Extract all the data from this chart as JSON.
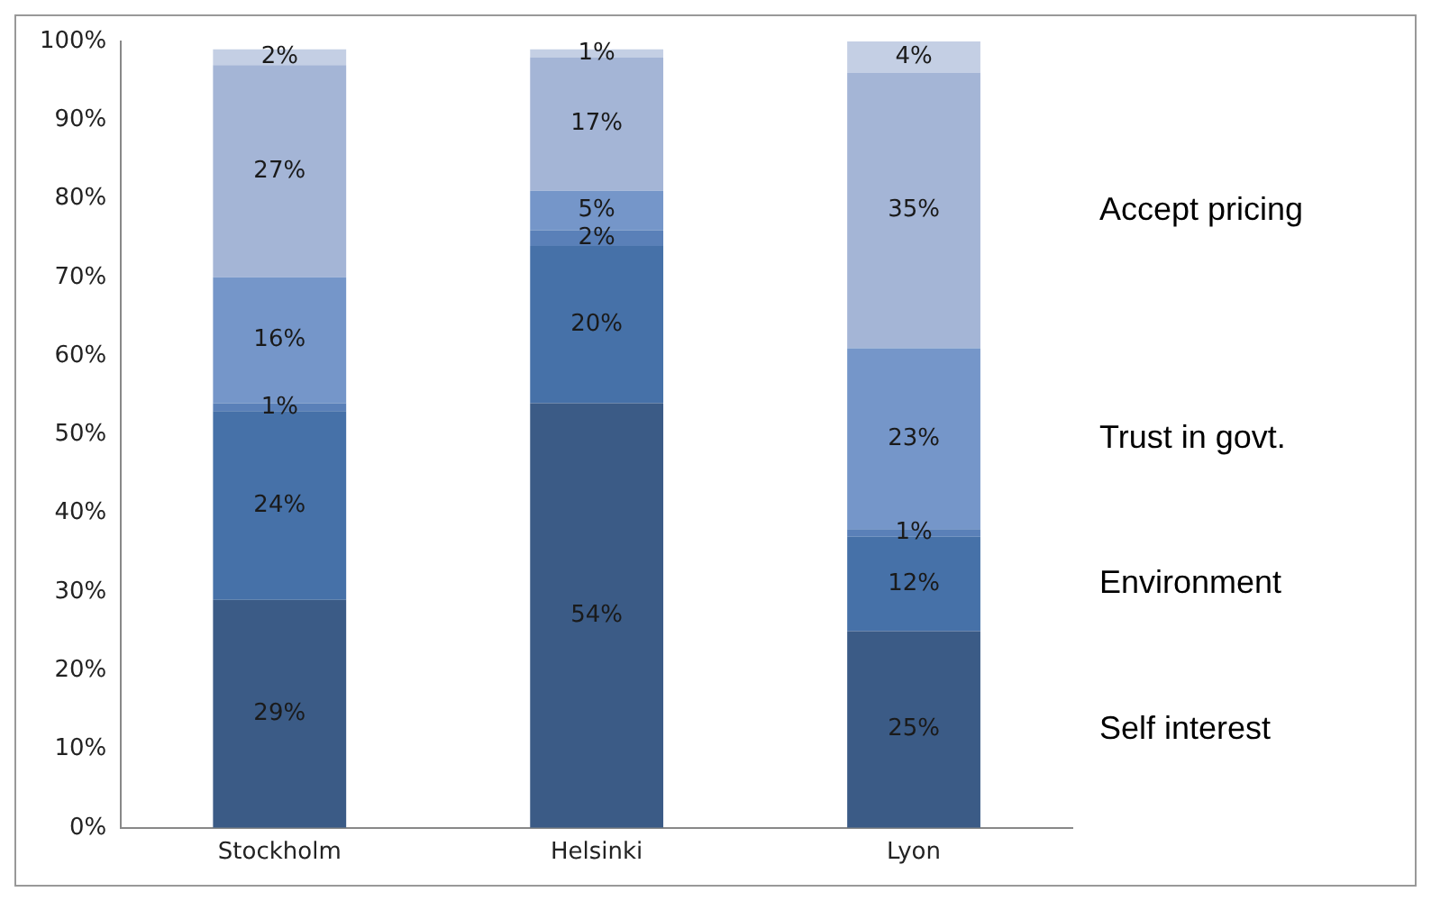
{
  "chart_data": {
    "type": "bar",
    "stacked": true,
    "categories": [
      "Stockholm",
      "Helsinki",
      "Lyon"
    ],
    "series": [
      {
        "name": "Self interest",
        "color": "#3b5b86",
        "values": [
          29,
          54,
          25
        ],
        "value_labels": [
          "29%",
          "54%",
          "25%"
        ]
      },
      {
        "name": "Environment",
        "color": "#4671a8",
        "values": [
          24,
          20,
          12
        ],
        "value_labels": [
          "24%",
          "20%",
          "12%"
        ]
      },
      {
        "color": "#5a80b8",
        "values": [
          1,
          2,
          1
        ],
        "value_labels": [
          "1%",
          "2%",
          "1%"
        ]
      },
      {
        "name": "Trust in govt.",
        "color": "#7596c9",
        "values": [
          16,
          5,
          23
        ],
        "value_labels": [
          "16%",
          "5%",
          "23%"
        ]
      },
      {
        "name": "Accept pricing",
        "color": "#a4b5d6",
        "values": [
          27,
          17,
          35
        ],
        "value_labels": [
          "27%",
          "17%",
          "35%"
        ]
      },
      {
        "color": "#c4cfe4",
        "values": [
          2,
          1,
          4
        ],
        "value_labels": [
          "2%",
          "1%",
          "4%"
        ]
      }
    ],
    "ylim": [
      0,
      100
    ],
    "yticks": [
      {
        "value": 0,
        "label": "0%"
      },
      {
        "value": 10,
        "label": "10%"
      },
      {
        "value": 20,
        "label": "20%"
      },
      {
        "value": 30,
        "label": "30%"
      },
      {
        "value": 40,
        "label": "40%"
      },
      {
        "value": 50,
        "label": "50%"
      },
      {
        "value": 60,
        "label": "60%"
      },
      {
        "value": 70,
        "label": "70%"
      },
      {
        "value": 80,
        "label": "80%"
      },
      {
        "value": 90,
        "label": "90%"
      },
      {
        "value": 100,
        "label": "100%"
      }
    ],
    "grid": false
  }
}
